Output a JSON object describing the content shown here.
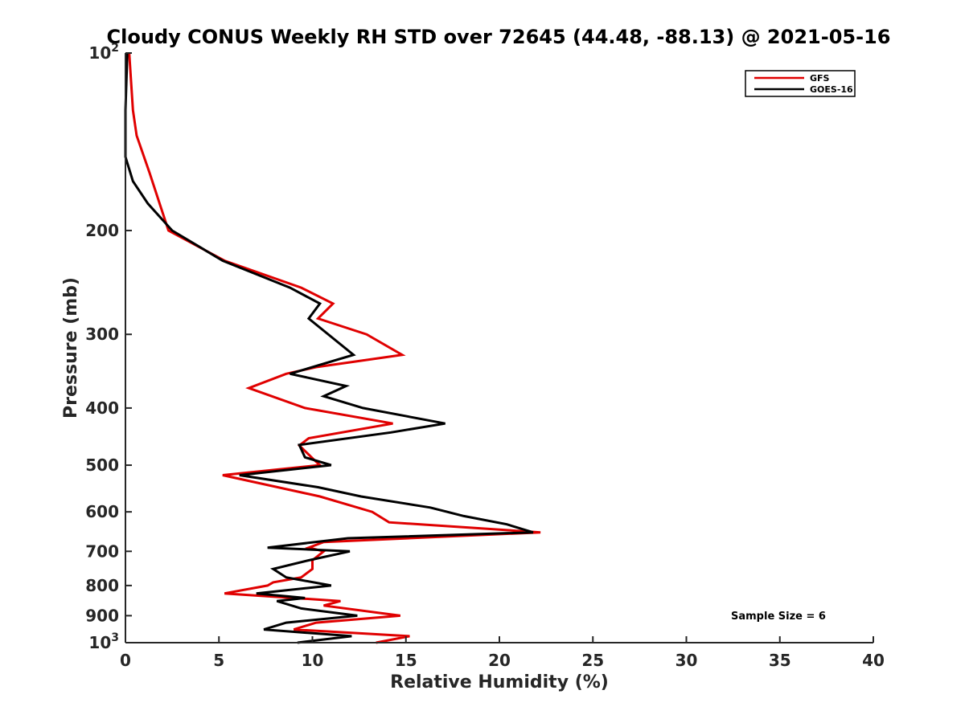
{
  "chart_data": {
    "type": "line",
    "title": "Cloudy CONUS Weekly RH STD over 72645 (44.48, -88.13) @ 2021-05-16",
    "xlabel": "Relative Humidity (%)",
    "ylabel": "Pressure (mb)",
    "xlim": [
      0,
      40
    ],
    "ylim": [
      100,
      1000
    ],
    "y_scale": "log",
    "y_reversed": true,
    "grid": false,
    "legend_position": "top-right",
    "x_ticks": [
      0,
      5,
      10,
      15,
      20,
      25,
      30,
      35,
      40
    ],
    "y_ticks": [
      {
        "value": 100,
        "base": "10",
        "exp": "2"
      },
      {
        "value": 200,
        "label": "200"
      },
      {
        "value": 300,
        "label": "300"
      },
      {
        "value": 400,
        "label": "400"
      },
      {
        "value": 500,
        "label": "500"
      },
      {
        "value": 600,
        "label": "600"
      },
      {
        "value": 700,
        "label": "700"
      },
      {
        "value": 800,
        "label": "800"
      },
      {
        "value": 900,
        "label": "900"
      },
      {
        "value": 1000,
        "base": "10",
        "exp": "3"
      }
    ],
    "annotation": "Sample Size = 6",
    "series": [
      {
        "name": "GFS",
        "color": "#e00000",
        "points": [
          [
            0.2,
            100
          ],
          [
            0.4,
            125
          ],
          [
            0.6,
            138
          ],
          [
            1.3,
            160
          ],
          [
            2.3,
            200
          ],
          [
            5.3,
            225
          ],
          [
            9.4,
            250
          ],
          [
            11.1,
            266
          ],
          [
            10.3,
            282
          ],
          [
            12.9,
            300
          ],
          [
            14.8,
            325
          ],
          [
            10.2,
            341
          ],
          [
            8.6,
            350
          ],
          [
            6.6,
            370
          ],
          [
            9.6,
            400
          ],
          [
            14.3,
            425
          ],
          [
            9.8,
            450
          ],
          [
            9.3,
            463
          ],
          [
            10.1,
            490
          ],
          [
            10.4,
            500
          ],
          [
            5.2,
            520
          ],
          [
            10.4,
            565
          ],
          [
            13.2,
            600
          ],
          [
            14.1,
            625
          ],
          [
            22.2,
            650
          ],
          [
            10.6,
            675
          ],
          [
            9.8,
            690
          ],
          [
            10.6,
            700
          ],
          [
            10.0,
            725
          ],
          [
            10.0,
            750
          ],
          [
            9.4,
            775
          ],
          [
            7.9,
            790
          ],
          [
            7.6,
            800
          ],
          [
            5.3,
            825
          ],
          [
            11.5,
            850
          ],
          [
            10.6,
            865
          ],
          [
            14.7,
            900
          ],
          [
            10.2,
            925
          ],
          [
            9.0,
            950
          ],
          [
            15.2,
            975
          ],
          [
            13.4,
            1000
          ]
        ]
      },
      {
        "name": "GOES-16",
        "color": "#000000",
        "points": [
          [
            0.1,
            100
          ],
          [
            0.0,
            125
          ],
          [
            0.0,
            150
          ],
          [
            0.4,
            165
          ],
          [
            1.2,
            180
          ],
          [
            2.5,
            200
          ],
          [
            5.2,
            225
          ],
          [
            8.8,
            250
          ],
          [
            10.4,
            266
          ],
          [
            9.8,
            282
          ],
          [
            12.2,
            325
          ],
          [
            8.8,
            350
          ],
          [
            11.8,
            367
          ],
          [
            10.6,
            382
          ],
          [
            12.7,
            400
          ],
          [
            17.1,
            425
          ],
          [
            14.2,
            440
          ],
          [
            9.3,
            462
          ],
          [
            9.6,
            485
          ],
          [
            11.0,
            500
          ],
          [
            6.1,
            520
          ],
          [
            10.3,
            545
          ],
          [
            12.6,
            565
          ],
          [
            16.3,
            590
          ],
          [
            18.1,
            610
          ],
          [
            20.4,
            630
          ],
          [
            21.8,
            650
          ],
          [
            11.9,
            665
          ],
          [
            7.6,
            690
          ],
          [
            12.0,
            700
          ],
          [
            9.8,
            725
          ],
          [
            7.9,
            750
          ],
          [
            8.6,
            775
          ],
          [
            11.0,
            800
          ],
          [
            7.0,
            825
          ],
          [
            9.6,
            840
          ],
          [
            8.1,
            850
          ],
          [
            9.4,
            875
          ],
          [
            12.4,
            900
          ],
          [
            8.6,
            925
          ],
          [
            7.4,
            950
          ],
          [
            12.1,
            975
          ],
          [
            9.2,
            1000
          ]
        ]
      }
    ]
  }
}
